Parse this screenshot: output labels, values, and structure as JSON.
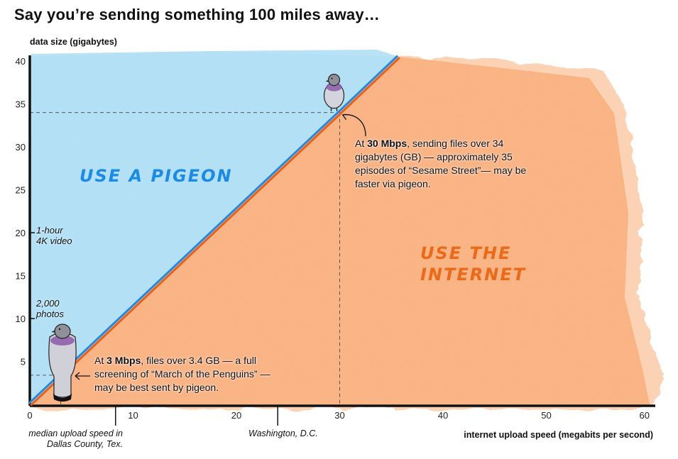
{
  "title": "Say you’re sending something 100 miles away…",
  "colors": {
    "pigeon_region": "#b3e0f5",
    "internet_region": "#f9ae78",
    "pigeon_line": "#2389e0",
    "internet_line": "#e8601a",
    "pigeon_text": "#1a8be6",
    "internet_text": "#ec6a17"
  },
  "chart_data": {
    "type": "area",
    "title": "Say you’re sending something 100 miles away…",
    "xlabel": "internet upload speed (megabits per second)",
    "ylabel": "data size (gigabytes)",
    "xlim": [
      0,
      60
    ],
    "ylim": [
      0,
      40
    ],
    "xticks": [
      "0",
      "10",
      "20",
      "30",
      "40",
      "50",
      "60"
    ],
    "yticks": [
      "40",
      "35",
      "30",
      "25",
      "20",
      "15",
      "10",
      "5"
    ],
    "grid": false,
    "series": [
      {
        "name": "break-even line",
        "x": [
          0,
          3,
          30,
          35.7
        ],
        "y": [
          0,
          3.4,
          34,
          40.5
        ]
      }
    ],
    "regions": [
      {
        "name": "USE A PIGEON",
        "side": "above line"
      },
      {
        "name": "USE THE INTERNET",
        "side": "below line"
      }
    ],
    "reference_points": [
      {
        "x": 3,
        "y": 3.4
      },
      {
        "x": 30,
        "y": 34
      }
    ],
    "y_references": [
      {
        "y": 20,
        "label_line1": "1-hour",
        "label_line2": "4K video"
      },
      {
        "y": 10,
        "label_line1": "2,000",
        "label_line2": "photos"
      }
    ],
    "x_markers": [
      {
        "x": 8.3,
        "label_line1": "median upload speed in",
        "label_line2": "Dallas County, Tex."
      },
      {
        "x": 24,
        "label_line1": "Washington, D.C.",
        "label_line2": ""
      }
    ]
  },
  "annotations": {
    "high": {
      "pre": "At ",
      "bold": "30 Mbps",
      "post": ", sending files over 34 gigabytes (GB) — approximately 35 episodes of “Sesame Street”— may be faster via pigeon."
    },
    "low": {
      "pre": "At ",
      "bold": "3 Mbps",
      "post": ", files over 3.4 GB — a full screening of “March of the Penguins” — may be best sent by pigeon."
    }
  },
  "regions": {
    "pigeon": "USE A PIGEON",
    "internet_line1": "USE THE",
    "internet_line2": "INTERNET"
  }
}
